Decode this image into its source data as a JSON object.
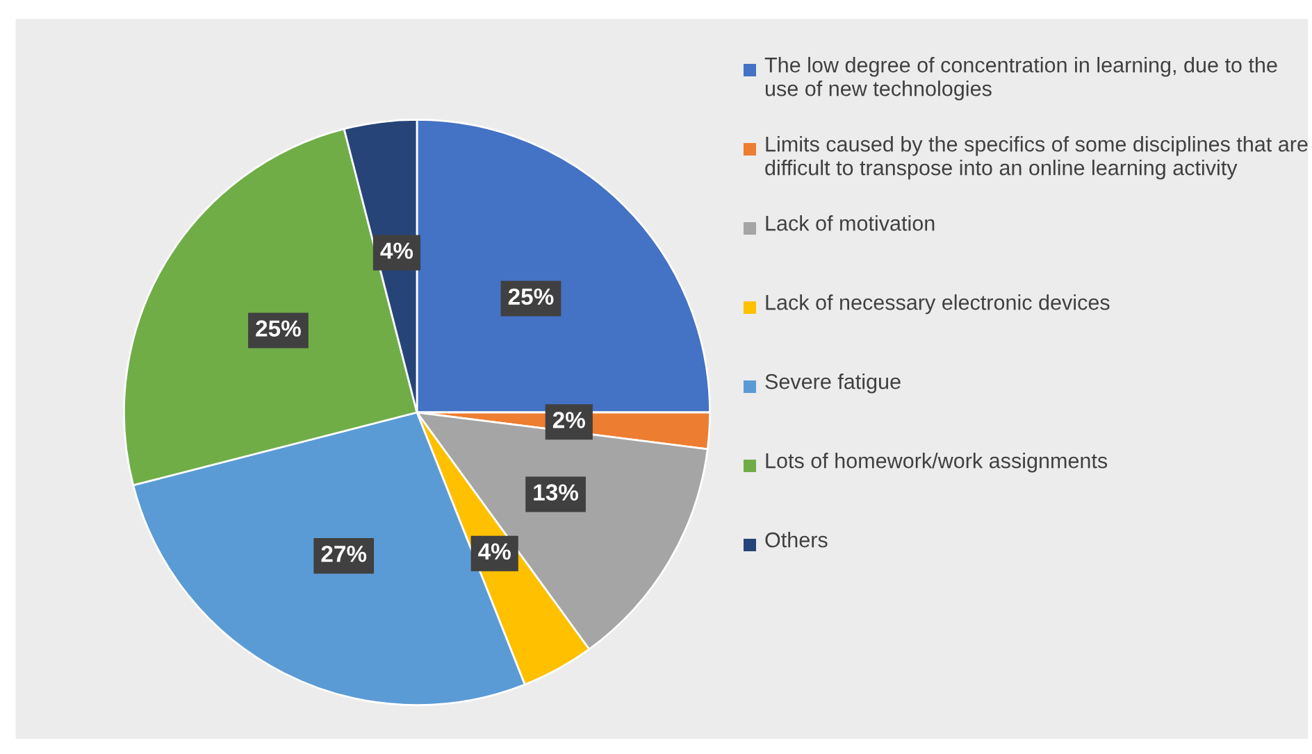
{
  "chart_data": {
    "type": "pie",
    "legend": "right",
    "value_labels": [
      "25%",
      "2%",
      "13%",
      "4%",
      "27%",
      "25%",
      "4%"
    ],
    "categories": [
      "The low degree of concentration in learning, due to the use of new technologies",
      "Limits caused by the specifics of some disciplines that are difficult to transpose into an online learning activity",
      "Lack of motivation",
      "Lack of necessary electronic devices",
      "Severe fatigue",
      "Lots of homework/work assignments",
      "Others"
    ],
    "values": [
      25,
      2,
      13,
      4,
      27,
      25,
      4
    ],
    "colors": [
      "#4472c4",
      "#ed7d31",
      "#a5a5a5",
      "#ffc000",
      "#5b9bd5",
      "#70ad47",
      "#264478"
    ]
  }
}
